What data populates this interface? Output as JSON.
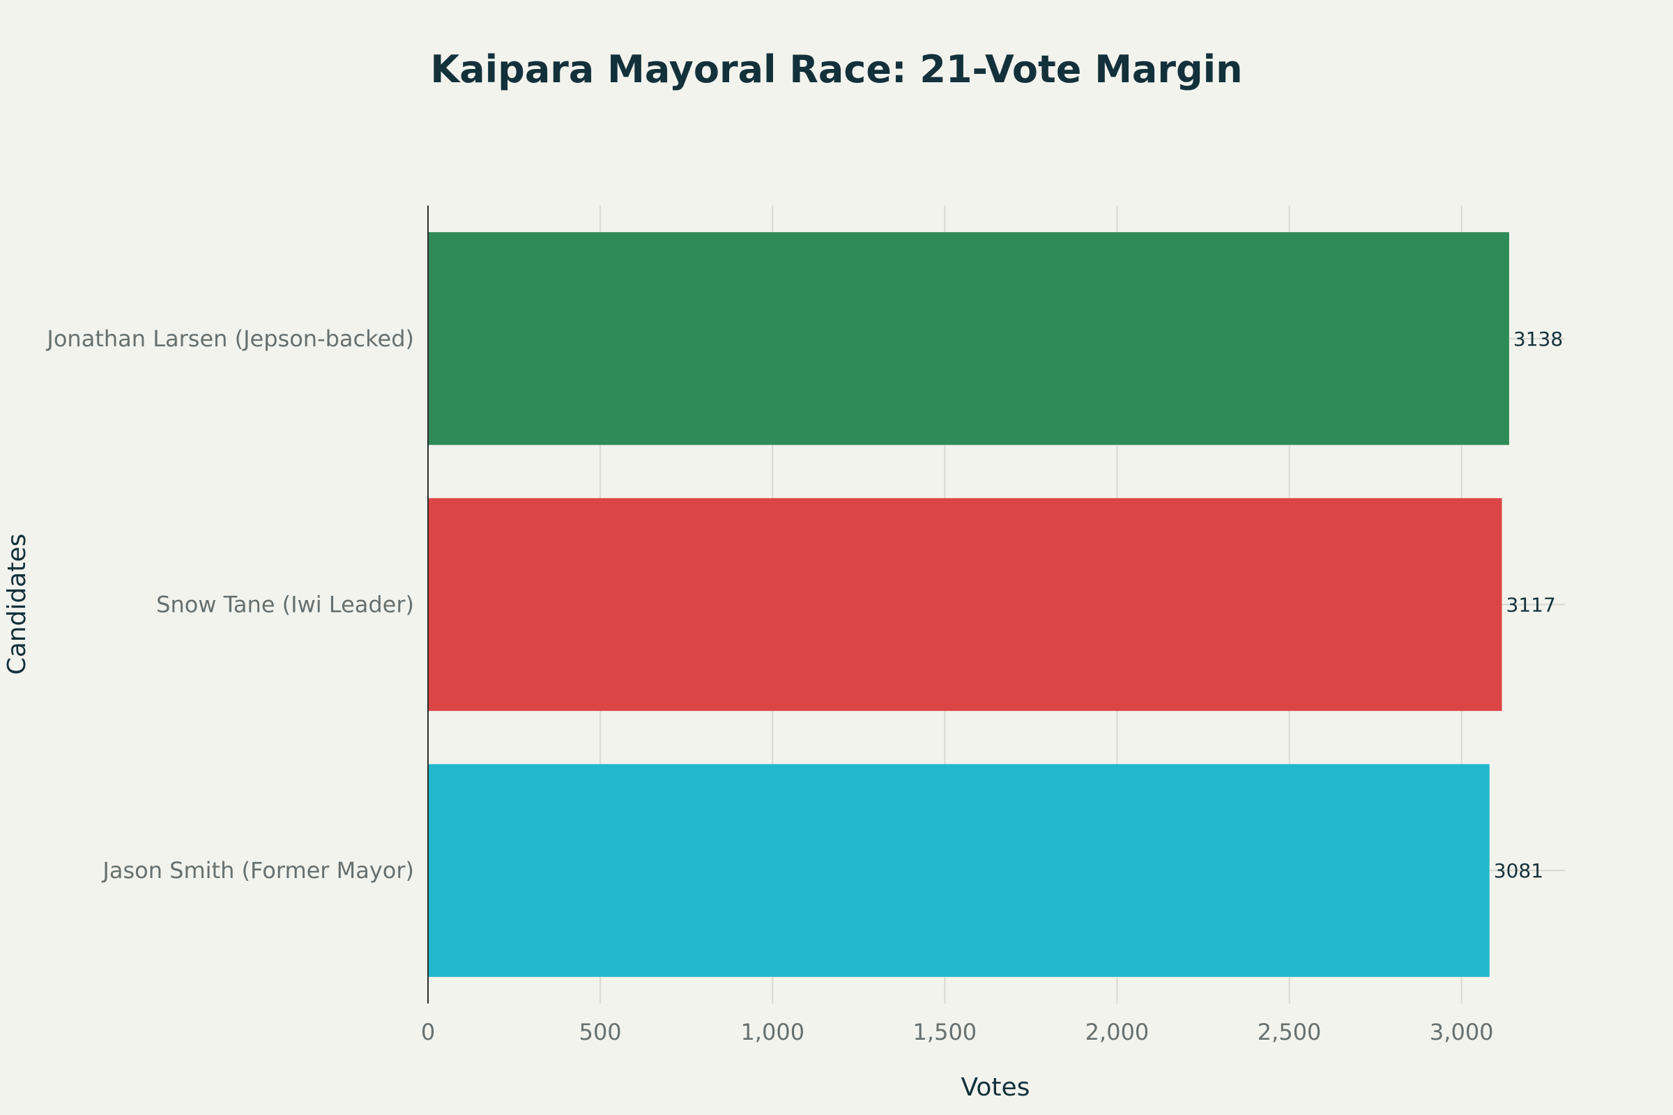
{
  "chart_data": {
    "type": "bar",
    "orientation": "horizontal",
    "title": "Kaipara Mayoral Race: 21-Vote Margin",
    "xlabel": "Votes",
    "ylabel": "Candidates",
    "categories": [
      "Jonathan Larsen (Jepson-backed)",
      "Snow Tane (Iwi Leader)",
      "Jason Smith (Former Mayor)"
    ],
    "values": [
      3138,
      3117,
      3081
    ],
    "data_labels": [
      "3138",
      "3117",
      "3081"
    ],
    "colors": [
      "#2e8b57",
      "#db4545",
      "#21b8cc"
    ],
    "xlim": [
      0,
      3300
    ],
    "xticks": [
      0,
      500,
      1000,
      1500,
      2000,
      2500,
      3000
    ],
    "xtick_labels": [
      "0",
      "500",
      "1,000",
      "1,500",
      "2,000",
      "2,500",
      "3,000"
    ],
    "grid": true,
    "legend": "none"
  }
}
